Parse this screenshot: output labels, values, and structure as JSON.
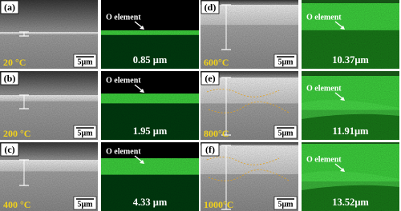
{
  "panels": [
    {
      "label": "(a)",
      "temperature": "20 °C",
      "scale_bar": "5μm",
      "element_label": "O element",
      "thickness": "0.85 μm"
    },
    {
      "label": "(b)",
      "temperature": "200 °C",
      "scale_bar": "5μm",
      "element_label": "O element",
      "thickness": "1.95 μm"
    },
    {
      "label": "(c)",
      "temperature": "400 °C",
      "scale_bar": "5μm",
      "element_label": "O element",
      "thickness": "4.33 μm"
    },
    {
      "label": "(d)",
      "temperature": "600°C",
      "scale_bar": "5μm",
      "element_label": "O element",
      "thickness": "10.37μm"
    },
    {
      "label": "(e)",
      "temperature": "800°C",
      "scale_bar": "5μm",
      "element_label": "O element",
      "thickness": "11.91μm"
    },
    {
      "label": "(f)",
      "temperature": "1000°C",
      "scale_bar": "5μm",
      "element_label": "O element",
      "thickness": "13.52μm"
    }
  ]
}
